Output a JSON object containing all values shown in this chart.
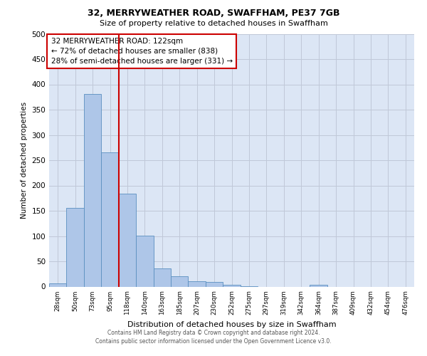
{
  "title": "32, MERRYWEATHER ROAD, SWAFFHAM, PE37 7GB",
  "subtitle": "Size of property relative to detached houses in Swaffham",
  "xlabel": "Distribution of detached houses by size in Swaffham",
  "ylabel": "Number of detached properties",
  "bin_labels": [
    "28sqm",
    "50sqm",
    "73sqm",
    "95sqm",
    "118sqm",
    "140sqm",
    "163sqm",
    "185sqm",
    "207sqm",
    "230sqm",
    "252sqm",
    "275sqm",
    "297sqm",
    "319sqm",
    "342sqm",
    "364sqm",
    "387sqm",
    "409sqm",
    "432sqm",
    "454sqm",
    "476sqm"
  ],
  "bar_heights": [
    6,
    155,
    381,
    265,
    184,
    101,
    36,
    21,
    11,
    9,
    3,
    1,
    0,
    0,
    0,
    3,
    0,
    0,
    0,
    0,
    0
  ],
  "bar_color": "#aec6e8",
  "bar_edge_color": "#5a8fc0",
  "grid_color": "#c0c8d8",
  "background_color": "#dce6f5",
  "vline_x_idx": 4,
  "vline_color": "#cc0000",
  "annotation_title": "32 MERRYWEATHER ROAD: 122sqm",
  "annotation_line1": "← 72% of detached houses are smaller (838)",
  "annotation_line2": "28% of semi-detached houses are larger (331) →",
  "annotation_box_color": "#cc0000",
  "ylim": [
    0,
    500
  ],
  "yticks": [
    0,
    50,
    100,
    150,
    200,
    250,
    300,
    350,
    400,
    450,
    500
  ],
  "footer1": "Contains HM Land Registry data © Crown copyright and database right 2024.",
  "footer2": "Contains public sector information licensed under the Open Government Licence v3.0."
}
